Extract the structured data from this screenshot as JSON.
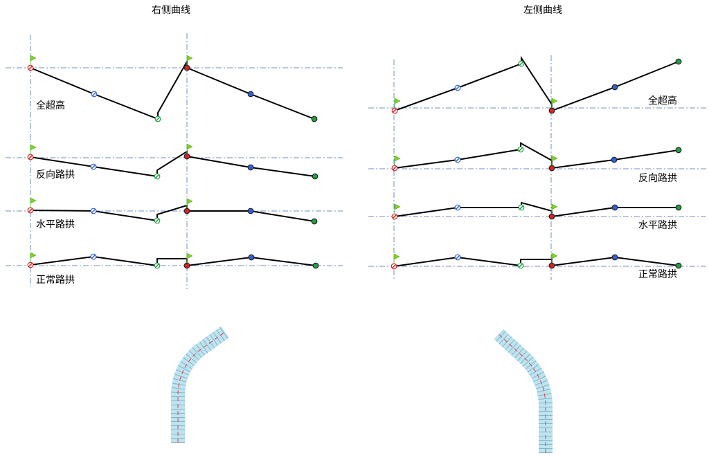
{
  "panels": [
    {
      "title": "右侧曲线",
      "labels": [
        "全超高",
        "反向路拱",
        "水平路拱",
        "正常路拱"
      ]
    },
    {
      "title": "左侧曲线",
      "labels": [
        "全超高",
        "反向路拱",
        "水平路拱",
        "正常路拱"
      ]
    }
  ]
}
